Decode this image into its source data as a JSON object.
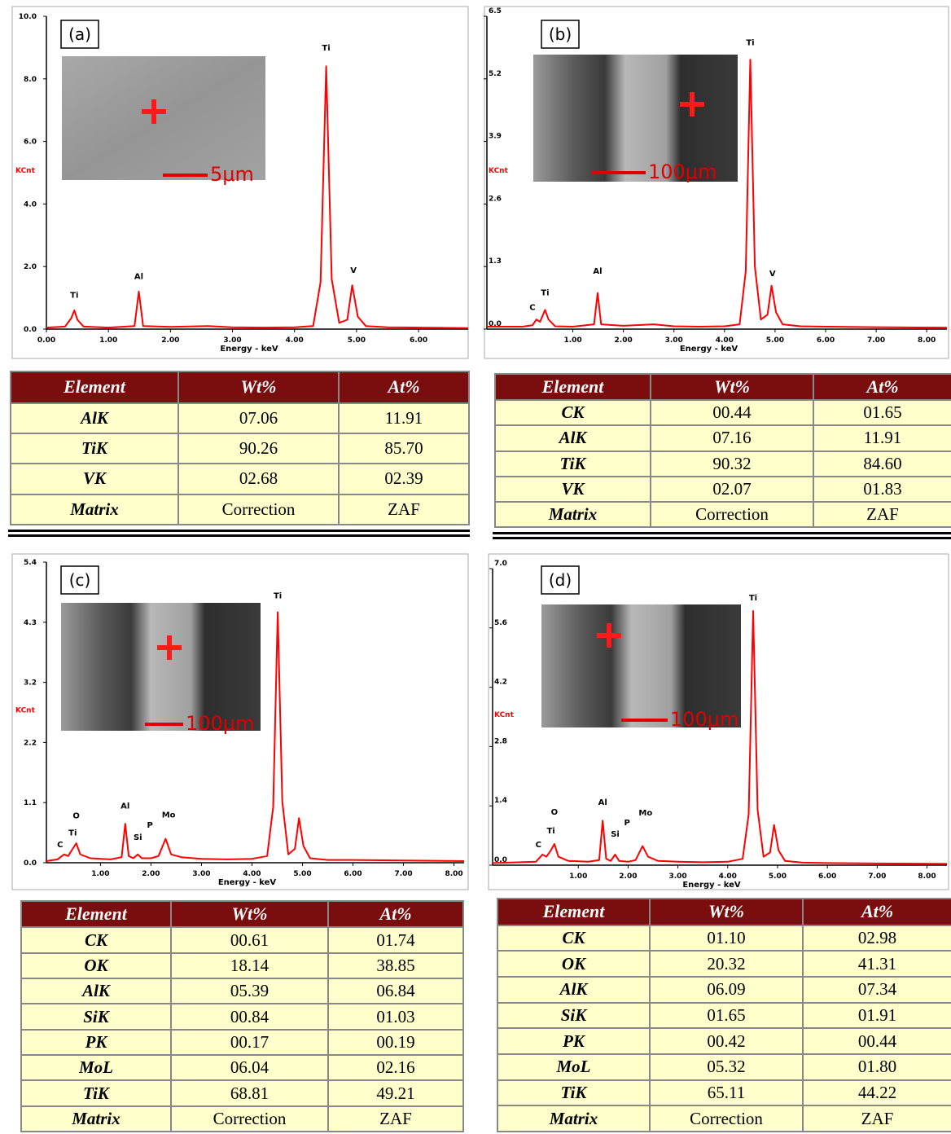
{
  "chart_data": [
    {
      "type": "line",
      "label": "(a)",
      "ylabel": "KCnt",
      "xlabel": "Energy - keV",
      "inset_scale": "5μm",
      "color": "#ff0000",
      "xlim": [
        0,
        6.8
      ],
      "ylim": [
        0,
        10
      ],
      "xticks": [
        {
          "value": 0,
          "label": "0.00"
        },
        {
          "value": 1,
          "label": "1.00"
        },
        {
          "value": 2,
          "label": "2.00"
        },
        {
          "value": 3,
          "label": "3.00"
        },
        {
          "value": 4,
          "label": "4.00"
        },
        {
          "value": 5,
          "label": "5.00"
        },
        {
          "value": 6,
          "label": "6.00"
        }
      ],
      "yticks": [
        {
          "value": 0,
          "label": "0.0"
        },
        {
          "value": 2,
          "label": "2.0"
        },
        {
          "value": 4,
          "label": "4.0"
        },
        {
          "value": 6,
          "label": "6.0"
        },
        {
          "value": 8,
          "label": "8.0"
        },
        {
          "value": 10,
          "label": "10.0"
        }
      ],
      "x": [
        0,
        0.3,
        0.4,
        0.45,
        0.5,
        0.6,
        1.0,
        1.42,
        1.49,
        1.56,
        2.0,
        2.6,
        3.0,
        3.5,
        4.0,
        4.3,
        4.42,
        4.51,
        4.6,
        4.72,
        4.85,
        4.93,
        5.02,
        5.15,
        5.5,
        6.0,
        6.8
      ],
      "values": [
        0.05,
        0.08,
        0.35,
        0.6,
        0.3,
        0.08,
        0.05,
        0.1,
        1.2,
        0.1,
        0.07,
        0.1,
        0.06,
        0.05,
        0.06,
        0.1,
        1.5,
        8.4,
        1.6,
        0.2,
        0.3,
        1.4,
        0.4,
        0.1,
        0.06,
        0.05,
        0.03
      ],
      "annotations": [
        {
          "text": "Ti",
          "x": 0.45,
          "y": 1.0
        },
        {
          "text": "Al",
          "x": 1.49,
          "y": 1.6
        },
        {
          "text": "Ti",
          "x": 4.51,
          "y": 8.9
        },
        {
          "text": "V",
          "x": 4.95,
          "y": 1.8
        }
      ]
    },
    {
      "type": "line",
      "label": "(b)",
      "ylabel": "KCnt",
      "xlabel": "Energy - keV",
      "inset_scale": "100μm",
      "color": "#ff0000",
      "xlim": [
        -0.7,
        8.4
      ],
      "ylim": [
        0,
        6.5
      ],
      "xticks": [
        {
          "value": 1,
          "label": "1.00"
        },
        {
          "value": 2,
          "label": "2.00"
        },
        {
          "value": 3,
          "label": "3.00"
        },
        {
          "value": 4,
          "label": "4.00"
        },
        {
          "value": 5,
          "label": "5.00"
        },
        {
          "value": 6,
          "label": "6.00"
        },
        {
          "value": 7,
          "label": "7.00"
        },
        {
          "value": 8,
          "label": "8.00"
        }
      ],
      "yticks": [
        {
          "value": 0,
          "label": "0.0"
        },
        1.3,
        2.6,
        3.9,
        5.2,
        6.5
      ],
      "x": [
        -0.7,
        0,
        0.2,
        0.28,
        0.35,
        0.45,
        0.52,
        0.65,
        1.0,
        1.42,
        1.49,
        1.56,
        2.0,
        2.6,
        3.0,
        3.5,
        4.0,
        4.3,
        4.42,
        4.51,
        4.6,
        4.72,
        4.85,
        4.93,
        5.02,
        5.15,
        5.5,
        6.0,
        7.0,
        8.4
      ],
      "values": [
        0.05,
        0.05,
        0.08,
        0.2,
        0.15,
        0.4,
        0.2,
        0.06,
        0.05,
        0.1,
        0.75,
        0.1,
        0.07,
        0.1,
        0.06,
        0.05,
        0.06,
        0.1,
        1.2,
        5.6,
        1.3,
        0.2,
        0.3,
        0.9,
        0.35,
        0.1,
        0.06,
        0.05,
        0.04,
        0.03
      ],
      "annotations": [
        {
          "text": "C",
          "x": 0.2,
          "y": 0.4
        },
        {
          "text": "Ti",
          "x": 0.45,
          "y": 0.7
        },
        {
          "text": "Al",
          "x": 1.49,
          "y": 1.15
        },
        {
          "text": "Ti",
          "x": 4.51,
          "y": 5.9
        },
        {
          "text": "V",
          "x": 4.95,
          "y": 1.1
        }
      ]
    },
    {
      "type": "line",
      "label": "(c)",
      "ylabel": "KCnt",
      "xlabel": "Energy - keV",
      "inset_scale": "100μm",
      "color": "#ff0000",
      "xlim": [
        -0.07,
        8.2
      ],
      "ylim": [
        0,
        5.4
      ],
      "xticks": [
        {
          "value": 1,
          "label": "1.00"
        },
        {
          "value": 2,
          "label": "2.00"
        },
        {
          "value": 3,
          "label": "3.00"
        },
        {
          "value": 4,
          "label": "4.00"
        },
        {
          "value": 5,
          "label": "5.00"
        },
        {
          "value": 6,
          "label": "6.00"
        },
        {
          "value": 7,
          "label": "7.00"
        },
        {
          "value": 8,
          "label": "8.00"
        }
      ],
      "yticks": [
        {
          "value": 0,
          "label": "0.0"
        },
        {
          "value": 1.08,
          "label": "1.1"
        },
        {
          "value": 2.16,
          "label": "2.2"
        },
        {
          "value": 3.24,
          "label": "3.2"
        },
        {
          "value": 4.32,
          "label": "4.3"
        },
        5.4
      ],
      "x": [
        -0.07,
        0.15,
        0.28,
        0.36,
        0.45,
        0.52,
        0.6,
        0.8,
        1.2,
        1.42,
        1.49,
        1.56,
        1.65,
        1.74,
        1.82,
        2.0,
        2.15,
        2.29,
        2.4,
        2.6,
        3.0,
        3.5,
        4.0,
        4.3,
        4.42,
        4.51,
        4.6,
        4.72,
        4.85,
        4.93,
        5.02,
        5.15,
        5.5,
        6.0,
        7.0,
        8.2
      ],
      "values": [
        0.03,
        0.06,
        0.15,
        0.12,
        0.25,
        0.35,
        0.15,
        0.08,
        0.06,
        0.1,
        0.7,
        0.12,
        0.08,
        0.15,
        0.08,
        0.08,
        0.12,
        0.43,
        0.15,
        0.1,
        0.07,
        0.06,
        0.07,
        0.12,
        1.0,
        4.5,
        1.1,
        0.15,
        0.25,
        0.8,
        0.3,
        0.08,
        0.05,
        0.05,
        0.04,
        0.03
      ],
      "annotations": [
        {
          "text": "C",
          "x": 0.2,
          "y": 0.28
        },
        {
          "text": "Ti",
          "x": 0.45,
          "y": 0.49
        },
        {
          "text": "O",
          "x": 0.52,
          "y": 0.8
        },
        {
          "text": "Al",
          "x": 1.49,
          "y": 0.97
        },
        {
          "text": "Si",
          "x": 1.74,
          "y": 0.41
        },
        {
          "text": "P",
          "x": 1.98,
          "y": 0.63
        },
        {
          "text": "Mo",
          "x": 2.35,
          "y": 0.81
        },
        {
          "text": "Ti",
          "x": 4.51,
          "y": 4.75
        }
      ]
    },
    {
      "type": "line",
      "label": "(d)",
      "ylabel": "KCnt",
      "xlabel": "Energy - keV",
      "inset_scale": "100μm",
      "color": "#ff0000",
      "xlim": [
        -0.72,
        8.4
      ],
      "ylim": [
        0,
        7
      ],
      "xticks": [
        {
          "value": 1,
          "label": "1.00"
        },
        {
          "value": 2,
          "label": "2.00"
        },
        {
          "value": 3,
          "label": "3.00"
        },
        {
          "value": 4,
          "label": "4.00"
        },
        {
          "value": 5,
          "label": "5.00"
        },
        {
          "value": 6,
          "label": "6.00"
        },
        {
          "value": 7,
          "label": "7.00"
        },
        {
          "value": 8,
          "label": "8.00"
        }
      ],
      "yticks": [
        {
          "value": 0,
          "label": "0.0"
        },
        1.4,
        2.8,
        4.2,
        5.6,
        {
          "value": 7,
          "label": "7.0"
        }
      ],
      "x": [
        -0.72,
        0.15,
        0.28,
        0.36,
        0.45,
        0.52,
        0.6,
        0.8,
        1.2,
        1.42,
        1.49,
        1.56,
        1.65,
        1.74,
        1.82,
        2.0,
        2.15,
        2.29,
        2.4,
        2.6,
        3.0,
        3.5,
        4.0,
        4.3,
        4.42,
        4.51,
        4.6,
        4.72,
        4.85,
        4.93,
        5.02,
        5.15,
        5.5,
        6.0,
        7.0,
        8.4
      ],
      "values": [
        0.05,
        0.08,
        0.25,
        0.2,
        0.35,
        0.5,
        0.2,
        0.1,
        0.08,
        0.12,
        1.05,
        0.15,
        0.1,
        0.25,
        0.1,
        0.08,
        0.12,
        0.45,
        0.2,
        0.1,
        0.08,
        0.07,
        0.08,
        0.15,
        1.2,
        6.0,
        1.3,
        0.2,
        0.3,
        0.95,
        0.35,
        0.1,
        0.06,
        0.05,
        0.04,
        0.03
      ],
      "annotations": [
        {
          "text": "C",
          "x": 0.2,
          "y": 0.42
        },
        {
          "text": "Ti",
          "x": 0.45,
          "y": 0.75
        },
        {
          "text": "O",
          "x": 0.52,
          "y": 1.19
        },
        {
          "text": "Al",
          "x": 1.49,
          "y": 1.42
        },
        {
          "text": "Si",
          "x": 1.74,
          "y": 0.67
        },
        {
          "text": "P",
          "x": 1.98,
          "y": 0.94
        },
        {
          "text": "Mo",
          "x": 2.35,
          "y": 1.17
        },
        {
          "text": "Ti",
          "x": 4.51,
          "y": 6.25
        }
      ]
    }
  ],
  "tables": [
    {
      "header": [
        "Element",
        "Wt%",
        "At%"
      ],
      "rows": [
        [
          "AlK",
          "07.06",
          "11.91"
        ],
        [
          "TiK",
          "90.26",
          "85.70"
        ],
        [
          "VK",
          "02.68",
          "02.39"
        ],
        [
          "Matrix",
          "Correction",
          "ZAF"
        ]
      ]
    },
    {
      "header": [
        "Element",
        "Wt%",
        "At%"
      ],
      "rows": [
        [
          "CK",
          "00.44",
          "01.65"
        ],
        [
          "AlK",
          "07.16",
          "11.91"
        ],
        [
          "TiK",
          "90.32",
          "84.60"
        ],
        [
          "VK",
          "02.07",
          "01.83"
        ],
        [
          "Matrix",
          "Correction",
          "ZAF"
        ]
      ]
    },
    {
      "header": [
        "Element",
        "Wt%",
        "At%"
      ],
      "rows": [
        [
          "CK",
          "00.61",
          "01.74"
        ],
        [
          "OK",
          "18.14",
          "38.85"
        ],
        [
          "AlK",
          "05.39",
          "06.84"
        ],
        [
          "SiK",
          "00.84",
          "01.03"
        ],
        [
          "PK",
          "00.17",
          "00.19"
        ],
        [
          "MoL",
          "06.04",
          "02.16"
        ],
        [
          "TiK",
          "68.81",
          "49.21"
        ],
        [
          "Matrix",
          "Correction",
          "ZAF"
        ]
      ]
    },
    {
      "header": [
        "Element",
        "Wt%",
        "At%"
      ],
      "rows": [
        [
          "CK",
          "01.10",
          "02.98"
        ],
        [
          "OK",
          "20.32",
          "41.31"
        ],
        [
          "AlK",
          "06.09",
          "07.34"
        ],
        [
          "SiK",
          "01.65",
          "01.91"
        ],
        [
          "PK",
          "00.42",
          "00.44"
        ],
        [
          "MoL",
          "05.32",
          "01.80"
        ],
        [
          "TiK",
          "65.11",
          "44.22"
        ],
        [
          "Matrix",
          "Correction",
          "ZAF"
        ]
      ]
    }
  ]
}
